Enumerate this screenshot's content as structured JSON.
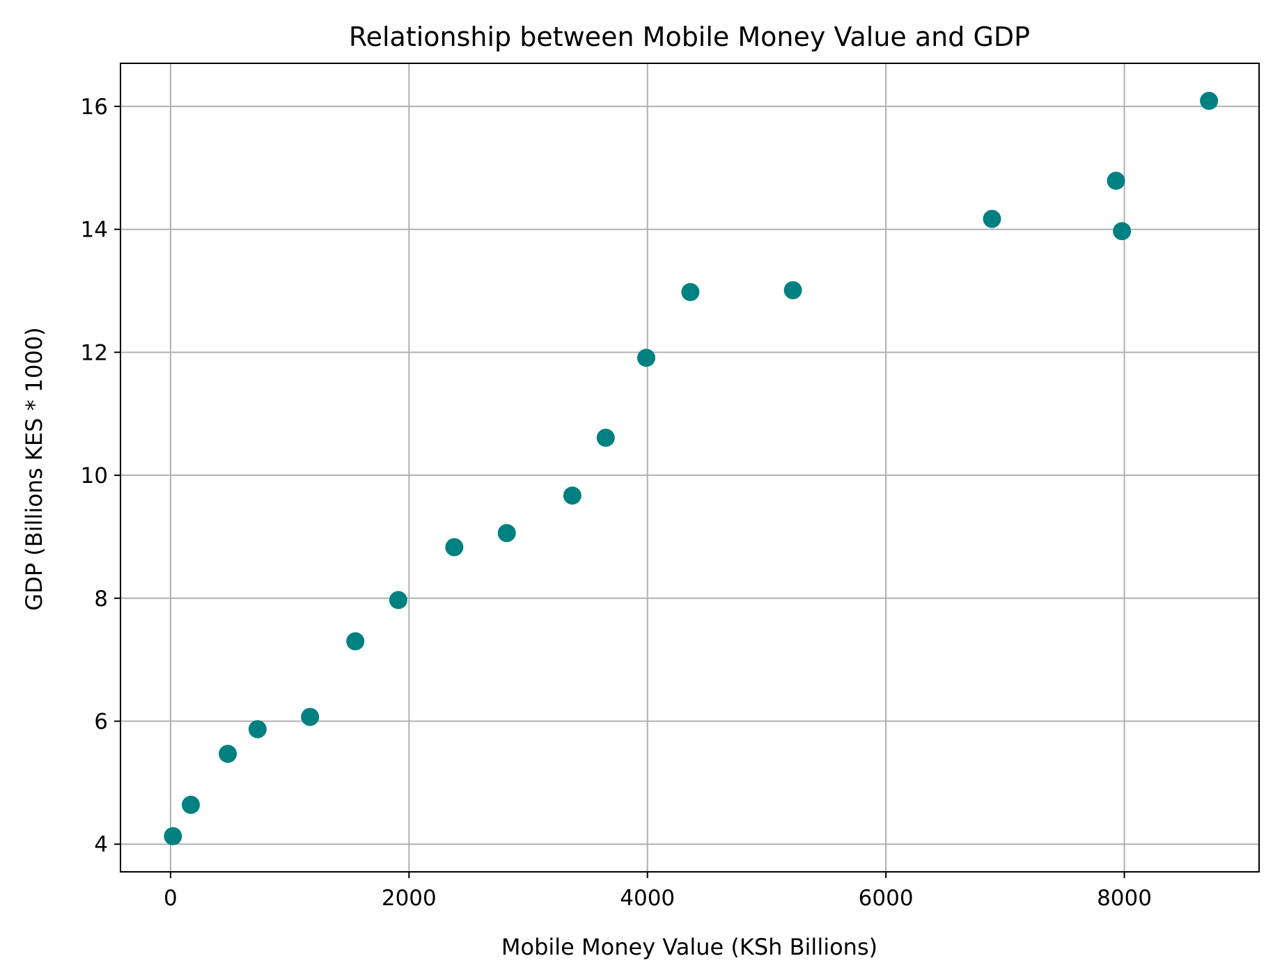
{
  "chart_data": {
    "type": "scatter",
    "title": "Relationship between Mobile Money Value and GDP",
    "xlabel": "Mobile Money Value (KSh Billions)",
    "ylabel": "GDP (Billions KES * 1000)",
    "xlim": [
      -420,
      9130
    ],
    "ylim": [
      3.55,
      16.7
    ],
    "xticks": [
      0,
      2000,
      4000,
      6000,
      8000
    ],
    "yticks": [
      4,
      6,
      8,
      10,
      12,
      14,
      16
    ],
    "grid": true,
    "marker_color": "#008080",
    "points": [
      {
        "x": 20,
        "y": 4.13
      },
      {
        "x": 170,
        "y": 4.64
      },
      {
        "x": 480,
        "y": 5.47
      },
      {
        "x": 730,
        "y": 5.87
      },
      {
        "x": 1170,
        "y": 6.07
      },
      {
        "x": 1550,
        "y": 7.3
      },
      {
        "x": 1910,
        "y": 7.97
      },
      {
        "x": 2380,
        "y": 8.83
      },
      {
        "x": 2820,
        "y": 9.06
      },
      {
        "x": 3370,
        "y": 9.67
      },
      {
        "x": 3650,
        "y": 10.61
      },
      {
        "x": 3990,
        "y": 11.91
      },
      {
        "x": 4360,
        "y": 12.98
      },
      {
        "x": 5220,
        "y": 13.01
      },
      {
        "x": 6890,
        "y": 14.17
      },
      {
        "x": 7930,
        "y": 14.79
      },
      {
        "x": 7980,
        "y": 13.97
      },
      {
        "x": 8710,
        "y": 16.09
      }
    ]
  }
}
